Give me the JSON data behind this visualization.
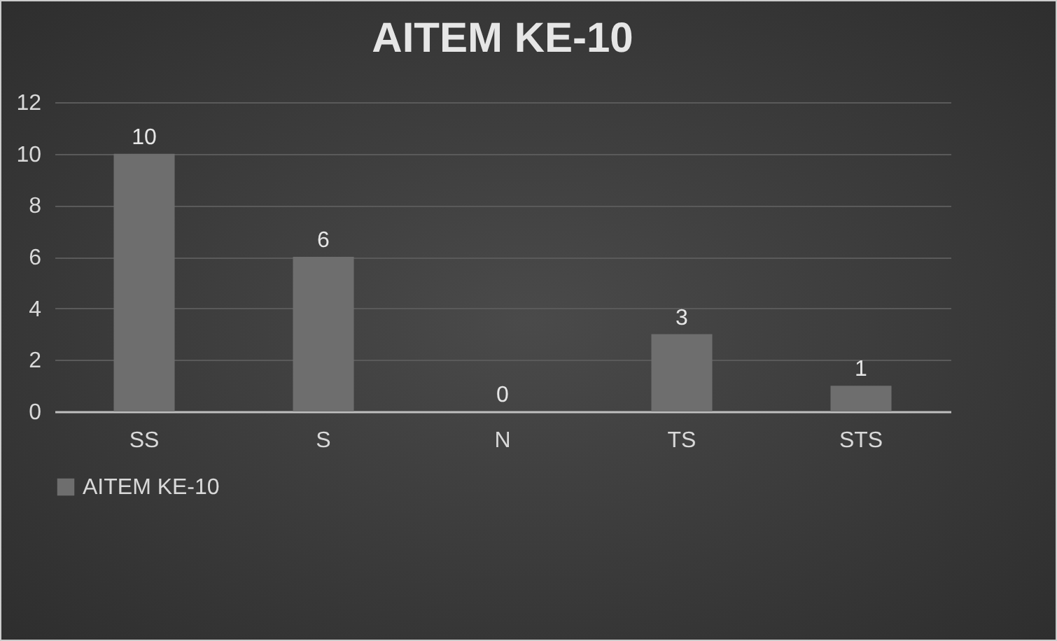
{
  "chart_data": {
    "type": "bar",
    "title": "AITEM KE-10",
    "categories": [
      "SS",
      "S",
      "N",
      "TS",
      "STS"
    ],
    "series": [
      {
        "name": "AITEM KE-10",
        "color": "#6e6e6e",
        "values": [
          10,
          6,
          0,
          3,
          1
        ]
      }
    ],
    "ylim": [
      0,
      12
    ],
    "yticks": [
      0,
      2,
      4,
      6,
      8,
      10,
      12
    ],
    "grid": "y",
    "legend": "bottom",
    "data_labels": true
  }
}
